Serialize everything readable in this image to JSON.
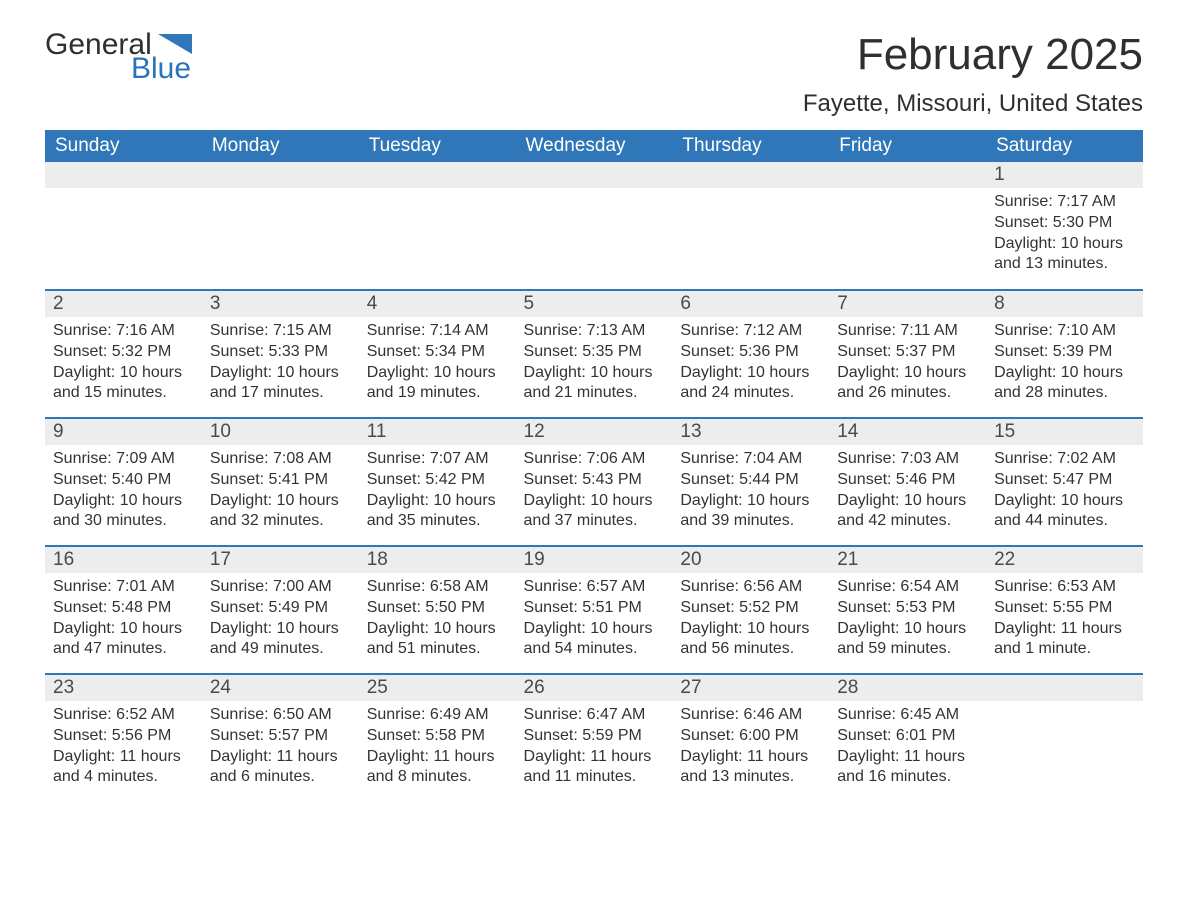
{
  "brand": {
    "general": "General",
    "blue": "Blue",
    "flag_color": "#2f77b9"
  },
  "title": "February 2025",
  "location": "Fayette, Missouri, United States",
  "header_bg": "#2f77b9",
  "header_fg": "#ffffff",
  "daynum_bg": "#ededed",
  "row_border_color": "#2f77b9",
  "text_color": "#333333",
  "day_headers": [
    "Sunday",
    "Monday",
    "Tuesday",
    "Wednesday",
    "Thursday",
    "Friday",
    "Saturday"
  ],
  "weeks": [
    [
      null,
      null,
      null,
      null,
      null,
      null,
      {
        "n": "1",
        "sunrise": "Sunrise: 7:17 AM",
        "sunset": "Sunset: 5:30 PM",
        "daylight": "Daylight: 10 hours and 13 minutes."
      }
    ],
    [
      {
        "n": "2",
        "sunrise": "Sunrise: 7:16 AM",
        "sunset": "Sunset: 5:32 PM",
        "daylight": "Daylight: 10 hours and 15 minutes."
      },
      {
        "n": "3",
        "sunrise": "Sunrise: 7:15 AM",
        "sunset": "Sunset: 5:33 PM",
        "daylight": "Daylight: 10 hours and 17 minutes."
      },
      {
        "n": "4",
        "sunrise": "Sunrise: 7:14 AM",
        "sunset": "Sunset: 5:34 PM",
        "daylight": "Daylight: 10 hours and 19 minutes."
      },
      {
        "n": "5",
        "sunrise": "Sunrise: 7:13 AM",
        "sunset": "Sunset: 5:35 PM",
        "daylight": "Daylight: 10 hours and 21 minutes."
      },
      {
        "n": "6",
        "sunrise": "Sunrise: 7:12 AM",
        "sunset": "Sunset: 5:36 PM",
        "daylight": "Daylight: 10 hours and 24 minutes."
      },
      {
        "n": "7",
        "sunrise": "Sunrise: 7:11 AM",
        "sunset": "Sunset: 5:37 PM",
        "daylight": "Daylight: 10 hours and 26 minutes."
      },
      {
        "n": "8",
        "sunrise": "Sunrise: 7:10 AM",
        "sunset": "Sunset: 5:39 PM",
        "daylight": "Daylight: 10 hours and 28 minutes."
      }
    ],
    [
      {
        "n": "9",
        "sunrise": "Sunrise: 7:09 AM",
        "sunset": "Sunset: 5:40 PM",
        "daylight": "Daylight: 10 hours and 30 minutes."
      },
      {
        "n": "10",
        "sunrise": "Sunrise: 7:08 AM",
        "sunset": "Sunset: 5:41 PM",
        "daylight": "Daylight: 10 hours and 32 minutes."
      },
      {
        "n": "11",
        "sunrise": "Sunrise: 7:07 AM",
        "sunset": "Sunset: 5:42 PM",
        "daylight": "Daylight: 10 hours and 35 minutes."
      },
      {
        "n": "12",
        "sunrise": "Sunrise: 7:06 AM",
        "sunset": "Sunset: 5:43 PM",
        "daylight": "Daylight: 10 hours and 37 minutes."
      },
      {
        "n": "13",
        "sunrise": "Sunrise: 7:04 AM",
        "sunset": "Sunset: 5:44 PM",
        "daylight": "Daylight: 10 hours and 39 minutes."
      },
      {
        "n": "14",
        "sunrise": "Sunrise: 7:03 AM",
        "sunset": "Sunset: 5:46 PM",
        "daylight": "Daylight: 10 hours and 42 minutes."
      },
      {
        "n": "15",
        "sunrise": "Sunrise: 7:02 AM",
        "sunset": "Sunset: 5:47 PM",
        "daylight": "Daylight: 10 hours and 44 minutes."
      }
    ],
    [
      {
        "n": "16",
        "sunrise": "Sunrise: 7:01 AM",
        "sunset": "Sunset: 5:48 PM",
        "daylight": "Daylight: 10 hours and 47 minutes."
      },
      {
        "n": "17",
        "sunrise": "Sunrise: 7:00 AM",
        "sunset": "Sunset: 5:49 PM",
        "daylight": "Daylight: 10 hours and 49 minutes."
      },
      {
        "n": "18",
        "sunrise": "Sunrise: 6:58 AM",
        "sunset": "Sunset: 5:50 PM",
        "daylight": "Daylight: 10 hours and 51 minutes."
      },
      {
        "n": "19",
        "sunrise": "Sunrise: 6:57 AM",
        "sunset": "Sunset: 5:51 PM",
        "daylight": "Daylight: 10 hours and 54 minutes."
      },
      {
        "n": "20",
        "sunrise": "Sunrise: 6:56 AM",
        "sunset": "Sunset: 5:52 PM",
        "daylight": "Daylight: 10 hours and 56 minutes."
      },
      {
        "n": "21",
        "sunrise": "Sunrise: 6:54 AM",
        "sunset": "Sunset: 5:53 PM",
        "daylight": "Daylight: 10 hours and 59 minutes."
      },
      {
        "n": "22",
        "sunrise": "Sunrise: 6:53 AM",
        "sunset": "Sunset: 5:55 PM",
        "daylight": "Daylight: 11 hours and 1 minute."
      }
    ],
    [
      {
        "n": "23",
        "sunrise": "Sunrise: 6:52 AM",
        "sunset": "Sunset: 5:56 PM",
        "daylight": "Daylight: 11 hours and 4 minutes."
      },
      {
        "n": "24",
        "sunrise": "Sunrise: 6:50 AM",
        "sunset": "Sunset: 5:57 PM",
        "daylight": "Daylight: 11 hours and 6 minutes."
      },
      {
        "n": "25",
        "sunrise": "Sunrise: 6:49 AM",
        "sunset": "Sunset: 5:58 PM",
        "daylight": "Daylight: 11 hours and 8 minutes."
      },
      {
        "n": "26",
        "sunrise": "Sunrise: 6:47 AM",
        "sunset": "Sunset: 5:59 PM",
        "daylight": "Daylight: 11 hours and 11 minutes."
      },
      {
        "n": "27",
        "sunrise": "Sunrise: 6:46 AM",
        "sunset": "Sunset: 6:00 PM",
        "daylight": "Daylight: 11 hours and 13 minutes."
      },
      {
        "n": "28",
        "sunrise": "Sunrise: 6:45 AM",
        "sunset": "Sunset: 6:01 PM",
        "daylight": "Daylight: 11 hours and 16 minutes."
      },
      null
    ]
  ]
}
